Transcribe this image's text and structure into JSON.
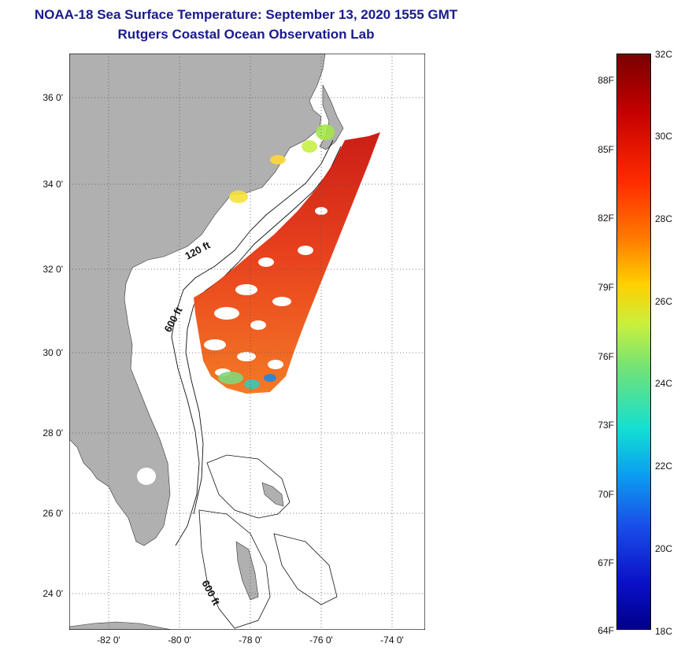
{
  "header": {
    "title": "NOAA-18 Sea Surface Temperature:  September 13, 2020 1555 GMT",
    "subtitle": "Rutgers Coastal Ocean Observation Lab"
  },
  "map": {
    "lat_ticks": [
      "36 0'",
      "34 0'",
      "32 0'",
      "30 0'",
      "28 0'",
      "26 0'",
      "24 0'"
    ],
    "lon_ticks": [
      "-82 0'",
      "-80 0'",
      "-78 0'",
      "-76 0'",
      "-74 0'"
    ],
    "contours": {
      "shelf": "120 ft",
      "slope": "600 ft",
      "bahamas": "600 ft"
    },
    "colors": {
      "land": "#b0b0b0",
      "ocean": "#ffffff",
      "grid": "#555555"
    }
  },
  "colorbar": {
    "fahrenheit": [
      "88F",
      "85F",
      "82F",
      "79F",
      "76F",
      "73F",
      "70F",
      "67F",
      "64F"
    ],
    "celsius": [
      "32C",
      "30C",
      "28C",
      "26C",
      "24C",
      "22C",
      "20C",
      "18C"
    ],
    "range_c": [
      18,
      32
    ],
    "colormap": "jet"
  }
}
